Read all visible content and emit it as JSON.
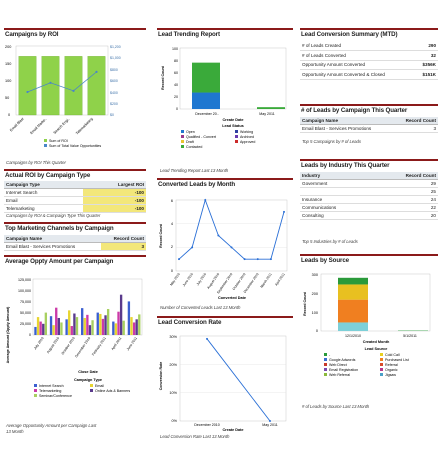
{
  "col1": {
    "roi": {
      "title": "Campaigns by ROI",
      "yleft": [
        "200",
        "150",
        "100",
        "50",
        "0"
      ],
      "yright": [
        "$1,200",
        "$1,000",
        "$800",
        "$600",
        "$400",
        "$200",
        "$0"
      ],
      "categories": [
        "Email Blast",
        "Email Marke..",
        "Search Engi..",
        "Telemarketing"
      ],
      "legend": [
        "Sum of ROI",
        "Sum of Total Value Opportunities"
      ],
      "caption": "Campaigns by ROI This Quarter"
    },
    "actual": {
      "title": "Actual ROI by Campaign Type",
      "headers": [
        "Campaign Type",
        "Largest ROI"
      ],
      "rows": [
        [
          "Internet Search",
          "-100"
        ],
        [
          "Email",
          "-100"
        ],
        [
          "Telemarketing",
          "-100"
        ]
      ],
      "caption": "Campaigns by ROI & Campaign Type This Quarter"
    },
    "channels": {
      "title": "Top Marketing Channels by Campaign",
      "headers": [
        "Campaign Name",
        "Record Count"
      ],
      "rows": [
        [
          "Email Blast - Services Promotions",
          "3"
        ]
      ]
    },
    "oppty": {
      "title": "Average Oppty Amount per Campaign",
      "ylabel": "Average Amount (Oppty Amount)",
      "yticks": [
        "125,000",
        "100,000",
        "75,000",
        "50,000",
        "25,000",
        "0"
      ],
      "xticks": [
        "July 2010",
        "August 2010",
        "October 2010",
        "December 2010",
        "February 2011",
        "April 2011",
        "June 2011"
      ],
      "xlabel": "Close Date",
      "legend_title": "Campaign Type",
      "legend": [
        "Internet Search",
        "Email",
        "Telemarketing",
        "Online Ads & Banners",
        "Seminar/Conference"
      ],
      "caption1": "Average Opportunity Amount per Campaign Last",
      "caption2": "13 Month"
    }
  },
  "col2": {
    "trend": {
      "title": "Lead Trending Report",
      "ylabel": "Record Count",
      "yticks": [
        "100",
        "80",
        "60",
        "40",
        "20",
        "0"
      ],
      "xticks": [
        "December 20..",
        "May 2011"
      ],
      "xlabel": "Create Date",
      "legend_title": "Lead Status",
      "legend": [
        "Open",
        "Working",
        "Qualified - Convert",
        "Archived",
        "Draft",
        "Approved",
        "Contacted"
      ],
      "caption": "Lead Trending Report Last 13 Month"
    },
    "converted": {
      "title": "Converted Leads by Month",
      "ylabel": "Record Count",
      "yticks": [
        "6",
        "4",
        "2",
        "0"
      ],
      "xticks": [
        "May 2010",
        "June 2010",
        "July 2010",
        "August 2010",
        "September 2010",
        "October 2010",
        "December 2010",
        "March 2011",
        "April 2011"
      ],
      "xlabel": "Converted Date",
      "caption": "Number of Converted Leads Last 13 Month"
    },
    "rate": {
      "title": "Lead Conversion Rate",
      "ylabel": "Conversion Rate",
      "yticks": [
        "30%",
        "20%",
        "10%",
        "0%"
      ],
      "xticks": [
        "December 2010",
        "May 2011"
      ],
      "xlabel": "Create Date",
      "caption": "Lead Conversion Rate Last 13 Month"
    }
  },
  "col3": {
    "summary": {
      "title": "Lead Conversion Summary (MTD)",
      "rows": [
        [
          "# of Leads Created",
          "290"
        ],
        [
          "# of Leads Converted",
          "32"
        ],
        [
          "Opportunity Amount Converted",
          "$356K"
        ],
        [
          "Opportunity Amount Converted & Closed",
          "$151K"
        ]
      ]
    },
    "bycampaign": {
      "title": "# of Leads by Campaign This Quarter",
      "headers": [
        "Campaign Name",
        "Record Count"
      ],
      "rows": [
        [
          "Email Blast - Services Promotions",
          "3"
        ]
      ],
      "caption": "Top 5 Campaigns by # of Leads"
    },
    "industry": {
      "title": "Leads by Industry This Quarter",
      "headers": [
        "Industry",
        "Record Count"
      ],
      "rows": [
        [
          "Government",
          "29"
        ],
        [
          "",
          "25"
        ],
        [
          "Insurance",
          "24"
        ],
        [
          "Communications",
          "22"
        ],
        [
          "Consulting",
          "20"
        ]
      ],
      "caption": "Top 5 Industries by # of Leads"
    },
    "source": {
      "title": "Leads by Source",
      "ylabel": "Record Count",
      "yticks": [
        "300",
        "200",
        "100",
        "0"
      ],
      "xticks": [
        "12/1/2010",
        "5/1/2011"
      ],
      "xlabel": "Created Month",
      "legend_title": "Lead Source",
      "legend": [
        "-",
        "Cold Call",
        "Google Adwords",
        "Purchased List",
        "Web Direct",
        "Referral",
        "Email Registration",
        "Organic",
        "Web Referral",
        "Jigsaw"
      ],
      "caption": "# of Leads by Source Last 13 Month"
    }
  },
  "chart_data": [
    {
      "type": "bar",
      "title": "Campaigns by ROI",
      "categories": [
        "Email Blast",
        "Email Marke..",
        "Search Engi..",
        "Telemarketing"
      ],
      "series": [
        {
          "name": "Sum of ROI",
          "values": [
            170,
            170,
            170,
            170
          ]
        },
        {
          "name": "Sum of Total Value Opportunities",
          "values": [
            400,
            560,
            420,
            750
          ]
        }
      ],
      "ylim": [
        0,
        200
      ],
      "y2lim": [
        0,
        1200
      ],
      "legend": "bottom"
    },
    {
      "type": "bar",
      "title": "Lead Trending Report",
      "categories": [
        "December 20..",
        "May 2011"
      ],
      "series": [
        {
          "name": "Open",
          "values": [
            27,
            0
          ]
        },
        {
          "name": "Working",
          "values": [
            0,
            0
          ]
        },
        {
          "name": "Qualified - Convert",
          "values": [
            0,
            0
          ]
        },
        {
          "name": "Archived",
          "values": [
            0,
            0
          ]
        },
        {
          "name": "Draft",
          "values": [
            0,
            0
          ]
        },
        {
          "name": "Approved",
          "values": [
            0,
            0
          ]
        },
        {
          "name": "Contacted",
          "values": [
            49,
            3
          ]
        }
      ],
      "xlabel": "Create Date",
      "ylabel": "Record Count",
      "ylim": [
        0,
        100
      ]
    },
    {
      "type": "line",
      "title": "Converted Leads by Month",
      "x": [
        "May 2010",
        "June 2010",
        "July 2010",
        "August 2010",
        "September 2010",
        "October 2010",
        "December 2010",
        "March 2011",
        "April 2011"
      ],
      "series": [
        {
          "values": [
            1,
            2,
            6,
            3,
            2,
            1,
            1,
            1,
            5
          ]
        }
      ],
      "xlabel": "Converted Date",
      "ylabel": "Record Count",
      "ylim": [
        0,
        6
      ]
    },
    {
      "type": "line",
      "title": "Lead Conversion Rate",
      "x": [
        "December 2010",
        "May 2011"
      ],
      "series": [
        {
          "values": [
            29,
            0
          ]
        }
      ],
      "xlabel": "Create Date",
      "ylabel": "Conversion Rate",
      "ylim": [
        0,
        30
      ]
    },
    {
      "type": "bar",
      "title": "Leads by Source",
      "categories": [
        "12/1/2010",
        "5/1/2011"
      ],
      "series": [
        {
          "name": "Cold Call",
          "values": [
            45,
            0
          ]
        },
        {
          "name": "Purchased List",
          "values": [
            120,
            0
          ]
        },
        {
          "name": "Referral",
          "values": [
            80,
            0
          ]
        },
        {
          "name": "-",
          "values": [
            35,
            2
          ]
        }
      ],
      "xlabel": "Created Month",
      "ylabel": "Record Count",
      "ylim": [
        0,
        300
      ]
    },
    {
      "type": "bar",
      "title": "Average Oppty Amount per Campaign",
      "categories": [
        "July 2010",
        "August 2010",
        "October 2010",
        "December 2010",
        "February 2011",
        "April 2011",
        "June 2011"
      ],
      "series": [
        {
          "name": "Internet Search",
          "values": [
            18000,
            42000,
            35000,
            60000,
            50000,
            30000,
            75000
          ]
        },
        {
          "name": "Email",
          "values": [
            40000,
            22000,
            55000,
            38000,
            47000,
            26000,
            40000
          ]
        },
        {
          "name": "Telemarketing",
          "values": [
            30000,
            61000,
            20000,
            45000,
            36000,
            52000,
            28000
          ]
        },
        {
          "name": "Online Ads & Banners",
          "values": [
            25000,
            38000,
            48000,
            22000,
            44000,
            90000,
            35000
          ]
        },
        {
          "name": "Seminar/Conference",
          "values": [
            50000,
            28000,
            40000,
            33000,
            58000,
            32000,
            46000
          ]
        }
      ],
      "xlabel": "Close Date",
      "ylabel": "Average Amount (Oppty Amount)",
      "ylim": [
        0,
        125000
      ]
    }
  ],
  "colors": {
    "section_border": "#8b1a1a",
    "header_bg": "#e4e9ee",
    "highlight": "#f3e77a",
    "roi_bar": "#8fd24a",
    "roi_line": "#4a86c8"
  }
}
